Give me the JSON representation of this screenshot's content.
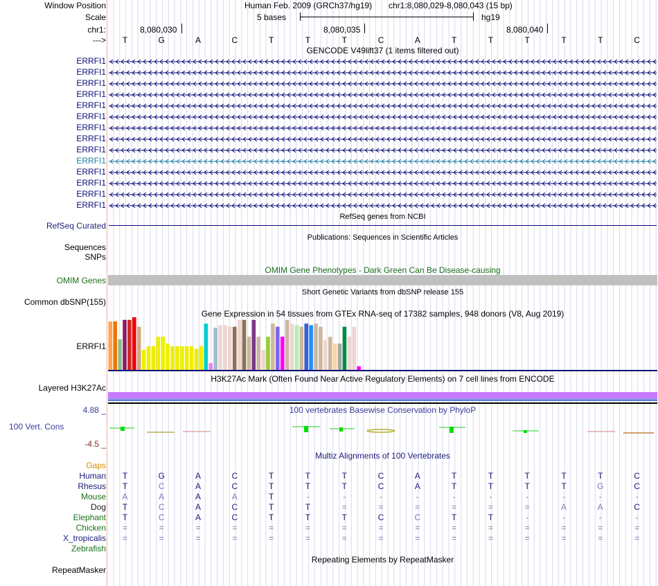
{
  "header": {
    "window_position_label": "Window Position",
    "scale_label": "Scale",
    "chrom_label": "chr1:",
    "strand_label": "--->",
    "assembly_text": "Human Feb. 2009 (GRCh37/hg19)",
    "position_text": "chr1:8,080,029-8,080,043 (15 bp)",
    "scale_text": "5 bases",
    "db_text": "hg19",
    "ticks": [
      "8,080,030",
      "8,080,035",
      "8,080,040"
    ]
  },
  "bases": [
    "T",
    "G",
    "A",
    "C",
    "T",
    "T",
    "T",
    "C",
    "A",
    "T",
    "T",
    "T",
    "T",
    "T",
    "C"
  ],
  "gencode": {
    "title": "GENCODE V49lift37 (1 items filtered out)",
    "genes": [
      "ERRFI1",
      "ERRFI1",
      "ERRFI1",
      "ERRFI1",
      "ERRFI1",
      "ERRFI1",
      "ERRFI1",
      "ERRFI1",
      "ERRFI1",
      "ERRFI1",
      "ERRFI1",
      "ERRFI1",
      "ERRFI1",
      "ERRFI1"
    ],
    "highlight_index": 9,
    "colors": {
      "normal": "#0c0c78",
      "highlight": "#1a7fa0"
    }
  },
  "refseq": {
    "title": "RefSeq genes from NCBI",
    "label": "RefSeq Curated"
  },
  "publications": {
    "title": "Publications: Sequences in Scientific Articles",
    "label1": "Sequences",
    "label2": "SNPs"
  },
  "omim": {
    "title": "OMIM Gene Phenotypes - Dark Green Can Be Disease-causing",
    "label": "OMIM Genes"
  },
  "dbsnp": {
    "title": "Short Genetic Variants from dbSNP release 155",
    "label": "Common dbSNP(155)"
  },
  "gtex": {
    "title": "Gene Expression in 54 tissues from GTEx RNA-seq of 17382 samples, 948 donors (V8, Aug 2019)",
    "label": "ERRFI1",
    "values": [
      0.92,
      0.92,
      0.58,
      0.95,
      0.95,
      1.0,
      0.82,
      0.38,
      0.45,
      0.45,
      0.63,
      0.63,
      0.5,
      0.45,
      0.45,
      0.45,
      0.45,
      0.45,
      0.4,
      0.45,
      0.88,
      0.13,
      0.8,
      0.85,
      0.85,
      0.82,
      0.82,
      0.95,
      0.95,
      0.63,
      0.95,
      0.63,
      0.38,
      0.63,
      0.88,
      0.82,
      0.63,
      0.95,
      0.88,
      0.85,
      0.82,
      0.88,
      0.85,
      0.88,
      0.82,
      0.57,
      0.63,
      0.5,
      0.5,
      0.82,
      0.63,
      0.82,
      0.07,
      0.0
    ],
    "colors": [
      "#FFA54F",
      "#EE7600",
      "#8FBC8F",
      "#8B1C62",
      "#CD2626",
      "#EE0000",
      "#CDAA7D",
      "#EEEE00",
      "#EEEE00",
      "#EEEE00",
      "#EEEE00",
      "#EEEE00",
      "#EEEE00",
      "#EEEE00",
      "#EEEE00",
      "#EEEE00",
      "#EEEE00",
      "#EEEE00",
      "#EEEE00",
      "#EEEE00",
      "#00CED1",
      "#EE82EE",
      "#9AC0CD",
      "#EED5D2",
      "#EED5D2",
      "#EED5D2",
      "#8B7355",
      "#EED5D2",
      "#8B7355",
      "#CDB79E",
      "#7A378B",
      "#CDB79E",
      "#EED5D2",
      "#9ACD32",
      "#CDB79E",
      "#7B68EE",
      "#FF00FF",
      "#CDB79E",
      "#EED5D2",
      "#B4EEB4",
      "#CDB79E",
      "#3A5FCD",
      "#1E90FF",
      "#CDB79E",
      "#CDB79E",
      "#EED5D2",
      "#CDB79E",
      "#FFD39B",
      "#A6A6A6",
      "#008B45",
      "#EED5D2",
      "#EED5D2",
      "#FF00FF",
      "#FF00FF"
    ]
  },
  "h3k27ac": {
    "title": "H3K27Ac Mark (Often Found Near Active Regulatory Elements) on 7 cell lines from ENCODE",
    "label": "Layered H3K27Ac"
  },
  "phylop": {
    "title": "100 vertebrates Basewise Conservation by PhyloP",
    "label": "100 Vert. Cons",
    "max": "4.88 _",
    "min": "-4.5 _"
  },
  "multiz": {
    "title": "Multiz Alignments of 100 Vertebrates",
    "gaps_label": "Gaps",
    "species": [
      {
        "name": "Human",
        "color": "#1a1a7a",
        "bases": [
          "T",
          "G",
          "A",
          "C",
          "T",
          "T",
          "T",
          "C",
          "A",
          "T",
          "T",
          "T",
          "T",
          "T",
          "C"
        ],
        "dim": [
          false,
          false,
          false,
          false,
          false,
          false,
          false,
          false,
          false,
          false,
          false,
          false,
          false,
          false,
          false
        ]
      },
      {
        "name": "Rhesus",
        "color": "#1a1a7a",
        "bases": [
          "T",
          "C",
          "A",
          "C",
          "T",
          "T",
          "T",
          "C",
          "A",
          "T",
          "T",
          "T",
          "T",
          "G",
          "C"
        ],
        "dim": [
          false,
          true,
          false,
          false,
          false,
          false,
          false,
          false,
          false,
          false,
          false,
          false,
          false,
          true,
          false
        ]
      },
      {
        "name": "Mouse",
        "color": "#1a6e1a",
        "bases": [
          "A",
          "A",
          "A",
          "A",
          "T",
          "-",
          "-",
          "-",
          "-",
          "-",
          "-",
          "-",
          "-",
          "-",
          "-"
        ],
        "dim": [
          true,
          true,
          false,
          true,
          false,
          true,
          true,
          true,
          true,
          true,
          true,
          true,
          true,
          true,
          true
        ]
      },
      {
        "name": "Dog",
        "color": "#1a1a1a",
        "bases": [
          "T",
          "C",
          "A",
          "C",
          "T",
          "T",
          "=",
          "=",
          "=",
          "=",
          "=",
          "=",
          "A",
          "A",
          "C"
        ],
        "dim": [
          false,
          true,
          false,
          false,
          false,
          false,
          true,
          true,
          true,
          true,
          true,
          true,
          true,
          true,
          false
        ]
      },
      {
        "name": "Elephant",
        "color": "#1a6e1a",
        "bases": [
          "T",
          "C",
          "A",
          "C",
          "T",
          "T",
          "T",
          "C",
          "C",
          "T",
          "T",
          "-",
          "-",
          "-",
          "-"
        ],
        "dim": [
          false,
          true,
          false,
          false,
          false,
          false,
          false,
          false,
          true,
          false,
          false,
          true,
          true,
          true,
          true
        ]
      },
      {
        "name": "Chicken",
        "color": "#1a6e1a",
        "bases": [
          "=",
          "=",
          "=",
          "=",
          "=",
          "=",
          "=",
          "=",
          "=",
          "=",
          "=",
          "=",
          "=",
          "=",
          "="
        ],
        "dim": [
          true,
          true,
          true,
          true,
          true,
          true,
          true,
          true,
          true,
          true,
          true,
          true,
          true,
          true,
          true
        ]
      },
      {
        "name": "X_tropicalis",
        "color": "#1a1a7a",
        "bases": [
          "=",
          "=",
          "=",
          "=",
          "=",
          "=",
          "=",
          "=",
          "=",
          "=",
          "=",
          "=",
          "=",
          "=",
          "="
        ],
        "dim": [
          true,
          true,
          true,
          true,
          true,
          true,
          true,
          true,
          true,
          true,
          true,
          true,
          true,
          true,
          true
        ]
      },
      {
        "name": "Zebrafish",
        "color": "#1a6e1a",
        "bases": [
          "",
          "",
          "",
          "",
          "",
          "",
          "",
          "",
          "",
          "",
          "",
          "",
          "",
          "",
          ""
        ],
        "dim": [
          true,
          true,
          true,
          true,
          true,
          true,
          true,
          true,
          true,
          true,
          true,
          true,
          true,
          true,
          true
        ]
      }
    ]
  },
  "repeatmasker": {
    "title": "Repeating Elements by RepeatMasker",
    "label": "RepeatMasker"
  },
  "colors": {
    "gap_orange": "#d58a00",
    "phylop_blue": "#3a3a9a",
    "phylop_neg": "#8a2a2a",
    "omim_bar": "#c0c0c0",
    "h3k27ac_purple": "#c87aff",
    "guide_line": "#d8d8f0"
  }
}
